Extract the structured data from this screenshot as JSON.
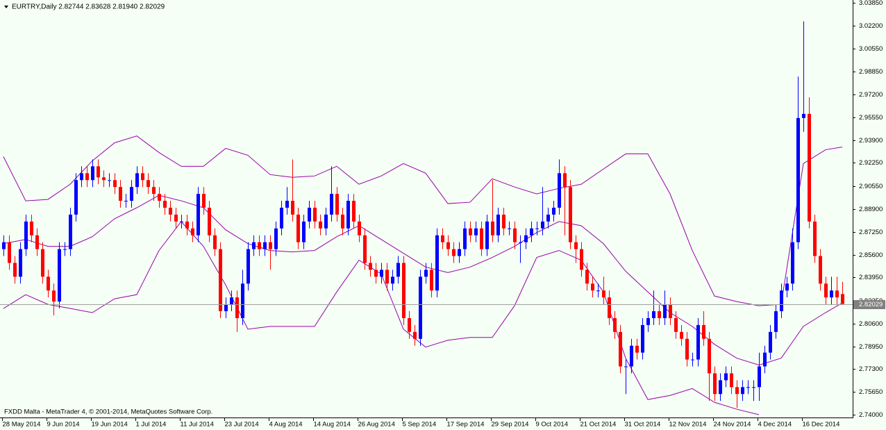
{
  "chart_data": {
    "type": "candlestick",
    "title": "EURTRY,Daily  2.82744 2.83628 2.81940 2.82029",
    "footer": "FXDD Malta - MetaTrader 4, © 2001-2014, MetaQuotes Software Corp.",
    "current_price": 2.82029,
    "up_color": "#0000ff",
    "down_color": "#ff0000",
    "band_color": "#9900aa",
    "ylim": [
      2.738,
      3.0405
    ],
    "yticks": [
      {
        "value": 3.0385,
        "label": "3.03850"
      },
      {
        "value": 3.022,
        "label": "3.02200"
      },
      {
        "value": 3.0055,
        "label": "3.00550"
      },
      {
        "value": 2.9885,
        "label": "2.98850"
      },
      {
        "value": 2.972,
        "label": "2.97200"
      },
      {
        "value": 2.9555,
        "label": "2.95550"
      },
      {
        "value": 2.939,
        "label": "2.93900"
      },
      {
        "value": 2.9225,
        "label": "2.92250"
      },
      {
        "value": 2.9055,
        "label": "2.90550"
      },
      {
        "value": 2.889,
        "label": "2.88900"
      },
      {
        "value": 2.8725,
        "label": "2.87250"
      },
      {
        "value": 2.856,
        "label": "2.85600"
      },
      {
        "value": 2.8395,
        "label": "2.83950"
      },
      {
        "value": 2.8225,
        "label": "2.82250"
      },
      {
        "value": 2.806,
        "label": "2.80600"
      },
      {
        "value": 2.7895,
        "label": "2.78950"
      },
      {
        "value": 2.773,
        "label": "2.77300"
      },
      {
        "value": 2.7565,
        "label": "2.75650"
      },
      {
        "value": 2.74,
        "label": "2.74000"
      }
    ],
    "categories": [
      "28 May 2014",
      null,
      null,
      null,
      null,
      null,
      null,
      null,
      "9 Jun 2014",
      null,
      null,
      null,
      null,
      null,
      null,
      null,
      "19 Jun 2014",
      null,
      null,
      null,
      null,
      null,
      null,
      null,
      "1 Jul 2014",
      null,
      null,
      null,
      null,
      null,
      null,
      null,
      "11 Jul 2014",
      null,
      null,
      null,
      null,
      null,
      null,
      null,
      "23 Jul 2014",
      null,
      null,
      null,
      null,
      null,
      null,
      null,
      "4 Aug 2014",
      null,
      null,
      null,
      null,
      null,
      null,
      null,
      "14 Aug 2014",
      null,
      null,
      null,
      null,
      null,
      null,
      null,
      "26 Aug 2014",
      null,
      null,
      null,
      null,
      null,
      null,
      null,
      "5 Sep 2014",
      null,
      null,
      null,
      null,
      null,
      null,
      null,
      "17 Sep 2014",
      null,
      null,
      null,
      null,
      null,
      null,
      null,
      "29 Sep 2014",
      null,
      null,
      null,
      null,
      null,
      null,
      null,
      "9 Oct 2014",
      null,
      null,
      null,
      null,
      null,
      null,
      null,
      "21 Oct 2014",
      null,
      null,
      null,
      null,
      null,
      null,
      null,
      "31 Oct 2014",
      null,
      null,
      null,
      null,
      null,
      null,
      null,
      "12 Nov 2014",
      null,
      null,
      null,
      null,
      null,
      null,
      null,
      "24 Nov 2014",
      null,
      null,
      null,
      null,
      null,
      null,
      null,
      "4 Dec 2014",
      null,
      null,
      null,
      null,
      null,
      null,
      null,
      "16 Dec 2014",
      null,
      null,
      null,
      null,
      null,
      null,
      null
    ],
    "open": [
      2.86,
      2.865,
      2.85,
      2.84,
      2.86,
      2.88,
      2.87,
      2.86,
      2.84,
      2.83,
      2.822,
      2.86,
      2.86,
      2.885,
      2.91,
      2.915,
      2.91,
      2.92,
      2.912,
      2.91,
      2.91,
      2.905,
      2.895,
      2.895,
      2.905,
      2.915,
      2.91,
      2.905,
      2.9,
      2.895,
      2.89,
      2.885,
      2.88,
      2.88,
      2.875,
      2.87,
      2.9,
      2.89,
      2.87,
      2.86,
      2.815,
      2.82,
      2.825,
      2.81,
      2.835,
      2.86,
      2.865,
      2.86,
      2.865,
      2.86,
      2.875,
      2.89,
      2.895,
      2.885,
      2.865,
      2.88,
      2.89,
      2.88,
      2.875,
      2.885,
      2.9,
      2.885,
      2.875,
      2.895,
      2.88,
      2.87,
      2.85,
      2.845,
      2.84,
      2.845,
      2.835,
      2.84,
      2.85,
      2.81,
      2.8,
      2.795,
      2.84,
      2.845,
      2.83,
      2.87,
      2.865,
      2.86,
      2.855,
      2.86,
      2.875,
      2.87,
      2.875,
      2.86,
      2.88,
      2.87,
      2.885,
      2.875,
      2.875,
      2.865,
      2.865,
      2.87,
      2.875,
      2.875,
      2.88,
      2.885,
      2.89,
      2.915,
      2.905,
      2.865,
      2.86,
      2.845,
      2.835,
      2.83,
      2.83,
      2.825,
      2.81,
      2.8,
      2.775,
      2.775,
      2.79,
      2.785,
      2.805,
      2.81,
      2.815,
      2.81,
      2.82,
      2.81,
      2.8,
      2.795,
      2.78,
      2.78,
      2.805,
      2.795,
      2.77,
      2.755,
      2.765,
      2.77,
      2.76,
      2.755,
      2.76,
      2.76,
      2.76,
      2.775,
      2.785,
      2.8,
      2.815,
      2.83,
      2.835,
      2.865,
      2.955,
      2.958,
      2.88,
      2.855,
      2.835,
      2.825,
      2.83,
      2.82744
    ],
    "high": [
      2.87,
      2.87,
      2.855,
      2.865,
      2.885,
      2.885,
      2.875,
      2.865,
      2.845,
      2.835,
      2.865,
      2.865,
      2.89,
      2.915,
      2.92,
      2.92,
      2.925,
      2.925,
      2.917,
      2.915,
      2.915,
      2.91,
      2.9,
      2.91,
      2.92,
      2.92,
      2.915,
      2.91,
      2.905,
      2.9,
      2.895,
      2.89,
      2.885,
      2.885,
      2.88,
      2.905,
      2.905,
      2.895,
      2.875,
      2.865,
      2.825,
      2.83,
      2.83,
      2.845,
      2.865,
      2.87,
      2.87,
      2.87,
      2.87,
      2.88,
      2.895,
      2.905,
      2.925,
      2.89,
      2.885,
      2.895,
      2.895,
      2.885,
      2.89,
      2.92,
      2.905,
      2.89,
      2.9,
      2.9,
      2.885,
      2.875,
      2.855,
      2.85,
      2.85,
      2.85,
      2.845,
      2.855,
      2.855,
      2.815,
      2.805,
      2.845,
      2.85,
      2.85,
      2.875,
      2.875,
      2.87,
      2.865,
      2.865,
      2.88,
      2.88,
      2.88,
      2.88,
      2.885,
      2.91,
      2.89,
      2.89,
      2.88,
      2.88,
      2.87,
      2.875,
      2.88,
      2.88,
      2.905,
      2.89,
      2.895,
      2.925,
      2.92,
      2.91,
      2.87,
      2.865,
      2.85,
      2.84,
      2.835,
      2.84,
      2.83,
      2.815,
      2.805,
      2.78,
      2.795,
      2.795,
      2.81,
      2.815,
      2.83,
      2.82,
      2.83,
      2.825,
      2.815,
      2.805,
      2.8,
      2.785,
      2.81,
      2.815,
      2.8,
      2.775,
      2.77,
      2.775,
      2.775,
      2.765,
      2.765,
      2.765,
      2.765,
      2.785,
      2.79,
      2.805,
      2.82,
      2.835,
      2.84,
      2.875,
      2.985,
      3.025,
      2.97,
      2.885,
      2.86,
      2.84,
      2.84,
      2.84,
      2.83628
    ],
    "low": [
      2.855,
      2.845,
      2.835,
      2.835,
      2.855,
      2.865,
      2.855,
      2.835,
      2.825,
      2.812,
      2.817,
      2.855,
      2.855,
      2.88,
      2.905,
      2.905,
      2.905,
      2.907,
      2.905,
      2.905,
      2.9,
      2.89,
      2.89,
      2.89,
      2.9,
      2.905,
      2.9,
      2.895,
      2.89,
      2.885,
      2.88,
      2.875,
      2.875,
      2.87,
      2.865,
      2.865,
      2.885,
      2.865,
      2.855,
      2.81,
      2.81,
      2.815,
      2.8,
      2.805,
      2.83,
      2.855,
      2.855,
      2.855,
      2.845,
      2.855,
      2.87,
      2.885,
      2.88,
      2.86,
      2.86,
      2.875,
      2.875,
      2.87,
      2.87,
      2.88,
      2.88,
      2.87,
      2.87,
      2.875,
      2.865,
      2.845,
      2.84,
      2.835,
      2.835,
      2.83,
      2.83,
      2.835,
      2.805,
      2.795,
      2.79,
      2.79,
      2.835,
      2.825,
      2.825,
      2.86,
      2.855,
      2.85,
      2.85,
      2.855,
      2.865,
      2.865,
      2.855,
      2.855,
      2.865,
      2.865,
      2.87,
      2.87,
      2.86,
      2.85,
      2.86,
      2.865,
      2.87,
      2.87,
      2.875,
      2.88,
      2.885,
      2.87,
      2.86,
      2.85,
      2.84,
      2.83,
      2.825,
      2.825,
      2.82,
      2.805,
      2.795,
      2.77,
      2.755,
      2.77,
      2.78,
      2.78,
      2.8,
      2.805,
      2.805,
      2.805,
      2.805,
      2.795,
      2.79,
      2.775,
      2.775,
      2.775,
      2.79,
      2.75,
      2.75,
      2.75,
      2.76,
      2.755,
      2.745,
      2.75,
      2.755,
      2.75,
      2.75,
      2.77,
      2.78,
      2.795,
      2.81,
      2.825,
      2.83,
      2.86,
      2.945,
      2.875,
      2.85,
      2.83,
      2.82,
      2.82,
      2.82,
      2.8194
    ],
    "close": [
      2.865,
      2.85,
      2.84,
      2.86,
      2.88,
      2.87,
      2.86,
      2.84,
      2.83,
      2.822,
      2.86,
      2.86,
      2.885,
      2.91,
      2.915,
      2.91,
      2.92,
      2.912,
      2.91,
      2.91,
      2.905,
      2.895,
      2.895,
      2.905,
      2.915,
      2.91,
      2.905,
      2.9,
      2.895,
      2.89,
      2.885,
      2.88,
      2.88,
      2.875,
      2.87,
      2.9,
      2.89,
      2.87,
      2.86,
      2.815,
      2.82,
      2.825,
      2.81,
      2.835,
      2.86,
      2.865,
      2.86,
      2.865,
      2.86,
      2.875,
      2.89,
      2.895,
      2.885,
      2.865,
      2.88,
      2.89,
      2.88,
      2.875,
      2.885,
      2.9,
      2.885,
      2.875,
      2.895,
      2.88,
      2.87,
      2.85,
      2.845,
      2.84,
      2.845,
      2.835,
      2.84,
      2.85,
      2.81,
      2.8,
      2.795,
      2.84,
      2.845,
      2.83,
      2.87,
      2.865,
      2.86,
      2.855,
      2.86,
      2.875,
      2.87,
      2.875,
      2.86,
      2.88,
      2.87,
      2.885,
      2.875,
      2.875,
      2.865,
      2.865,
      2.87,
      2.875,
      2.875,
      2.88,
      2.885,
      2.89,
      2.915,
      2.905,
      2.865,
      2.86,
      2.845,
      2.835,
      2.83,
      2.83,
      2.825,
      2.81,
      2.8,
      2.775,
      2.775,
      2.79,
      2.785,
      2.805,
      2.81,
      2.815,
      2.81,
      2.82,
      2.81,
      2.8,
      2.795,
      2.78,
      2.78,
      2.805,
      2.795,
      2.77,
      2.755,
      2.765,
      2.77,
      2.76,
      2.755,
      2.76,
      2.76,
      2.76,
      2.775,
      2.785,
      2.8,
      2.815,
      2.83,
      2.835,
      2.865,
      2.955,
      2.958,
      2.88,
      2.855,
      2.835,
      2.825,
      2.83,
      2.825,
      2.82029
    ],
    "band_x": [
      0,
      4,
      8,
      12,
      16,
      20,
      24,
      28,
      32,
      36,
      40,
      44,
      48,
      52,
      56,
      60,
      64,
      68,
      72,
      76,
      80,
      84,
      88,
      92,
      96,
      100,
      104,
      108,
      112,
      116,
      120,
      124,
      128,
      132,
      136,
      140,
      144,
      148,
      151
    ],
    "bands": [
      {
        "values": [
          2.927,
          2.895,
          2.896,
          2.907,
          2.924,
          2.937,
          2.942,
          2.93,
          2.92,
          2.92,
          2.933,
          2.928,
          2.914,
          2.912,
          2.913,
          2.92,
          2.907,
          2.913,
          2.922,
          2.915,
          2.893,
          2.894,
          2.911,
          2.905,
          2.9,
          2.904,
          2.907,
          2.918,
          2.929,
          2.929,
          2.9,
          2.859,
          2.826,
          2.822,
          2.819,
          2.82,
          2.922,
          2.932,
          2.934
        ]
      },
      {
        "values": [
          2.864,
          2.867,
          2.862,
          2.862,
          2.869,
          2.882,
          2.89,
          2.899,
          2.895,
          2.89,
          2.874,
          2.864,
          2.859,
          2.858,
          2.859,
          2.869,
          2.877,
          2.867,
          2.857,
          2.847,
          2.843,
          2.847,
          2.854,
          2.862,
          2.872,
          2.88,
          2.877,
          2.864,
          2.844,
          2.829,
          2.814,
          2.804,
          2.791,
          2.781,
          2.776,
          2.781,
          2.804,
          2.814,
          2.821
        ]
      },
      {
        "values": [
          2.817,
          2.827,
          2.82,
          2.817,
          2.814,
          2.824,
          2.827,
          2.859,
          2.88,
          2.862,
          2.834,
          2.802,
          2.804,
          2.804,
          2.804,
          2.829,
          2.852,
          2.842,
          2.802,
          2.789,
          2.794,
          2.796,
          2.796,
          2.819,
          2.854,
          2.859,
          2.852,
          2.829,
          2.781,
          2.751,
          2.754,
          2.759,
          2.749,
          2.744,
          2.74,
          null,
          null,
          null,
          null
        ]
      }
    ]
  }
}
